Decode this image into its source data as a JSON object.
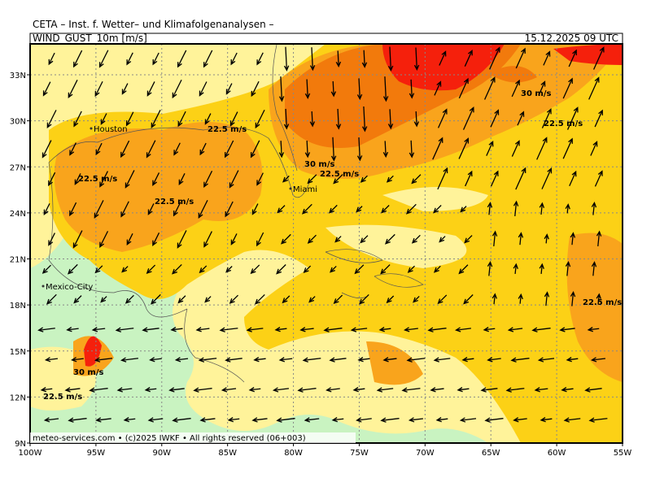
{
  "header": {
    "title": "CETA – Inst. f. Wetter– und Klimafolgenanalysen –",
    "parameter": "WIND_GUST_10m [m/s]",
    "valid_time": "15.12.2025 09 UTC"
  },
  "map": {
    "lat_labels": [
      "33N",
      "30N",
      "27N",
      "24N",
      "21N",
      "18N",
      "15N",
      "12N",
      "9N"
    ],
    "lon_labels": [
      "100W",
      "95W",
      "90W",
      "85W",
      "80W",
      "75W",
      "70W",
      "65W",
      "60W",
      "55W"
    ],
    "places": [
      "Houston",
      "Miami",
      "Mexico-City"
    ],
    "contour_labels": [
      "22.5 m/s",
      "22.5 m/s",
      "22.5 m/s",
      "22.5 m/s",
      "22.5 m/s",
      "22.5 m/s",
      "22.5 m/s",
      "30 m/s",
      "30 m/s",
      "30 m/s"
    ]
  },
  "footer": "meteo-services.com • (c)2025 IWKF • All rights reserved (06+003)"
}
